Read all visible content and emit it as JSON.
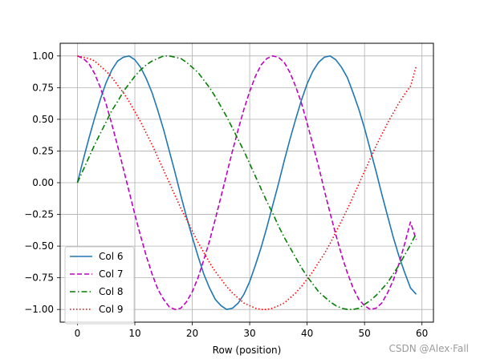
{
  "chart_data": {
    "type": "line",
    "title": "",
    "xlabel": "Row (position)",
    "ylabel": "",
    "xlim": [
      -3,
      62
    ],
    "ylim": [
      -1.1,
      1.1
    ],
    "x_ticks": [
      0,
      10,
      20,
      30,
      40,
      50,
      60
    ],
    "x_tick_labels": [
      "0",
      "10",
      "20",
      "30",
      "40",
      "50",
      "60"
    ],
    "y_ticks": [
      -1.0,
      -0.75,
      -0.5,
      -0.25,
      0.0,
      0.25,
      0.5,
      0.75,
      1.0
    ],
    "y_tick_labels": [
      "−1.00",
      "−0.75",
      "−0.50",
      "−0.25",
      "0.00",
      "0.25",
      "0.50",
      "0.75",
      "1.00"
    ],
    "grid": true,
    "legend_position": "lower-left",
    "x": [
      0,
      1,
      2,
      3,
      4,
      5,
      6,
      7,
      8,
      9,
      10,
      11,
      12,
      13,
      14,
      15,
      16,
      17,
      18,
      19,
      20,
      21,
      22,
      23,
      24,
      25,
      26,
      27,
      28,
      29,
      30,
      31,
      32,
      33,
      34,
      35,
      36,
      37,
      38,
      39,
      40,
      41,
      42,
      43,
      44,
      45,
      46,
      47,
      48,
      49,
      50,
      51,
      52,
      53,
      54,
      55,
      56,
      57,
      58,
      59
    ],
    "series": [
      {
        "name": "Col 6",
        "color": "#1f77b4",
        "style": "solid",
        "values": [
          0.0,
          0.18,
          0.35,
          0.51,
          0.66,
          0.79,
          0.89,
          0.96,
          0.99,
          1.0,
          0.97,
          0.91,
          0.82,
          0.71,
          0.57,
          0.42,
          0.25,
          0.08,
          -0.1,
          -0.27,
          -0.43,
          -0.58,
          -0.72,
          -0.83,
          -0.92,
          -0.97,
          -1.0,
          -0.99,
          -0.95,
          -0.88,
          -0.78,
          -0.65,
          -0.51,
          -0.35,
          -0.18,
          -0.01,
          0.17,
          0.34,
          0.5,
          0.65,
          0.78,
          0.88,
          0.95,
          0.99,
          1.0,
          0.97,
          0.91,
          0.83,
          0.71,
          0.58,
          0.43,
          0.26,
          0.09,
          -0.09,
          -0.26,
          -0.43,
          -0.58,
          -0.71,
          -0.83,
          -0.88
        ]
      },
      {
        "name": "Col 7",
        "color": "#c000c0",
        "style": "dashed",
        "values": [
          1.0,
          0.98,
          0.94,
          0.86,
          0.75,
          0.62,
          0.46,
          0.29,
          0.11,
          -0.07,
          -0.25,
          -0.42,
          -0.58,
          -0.72,
          -0.84,
          -0.92,
          -0.98,
          -1.0,
          -0.99,
          -0.94,
          -0.86,
          -0.75,
          -0.61,
          -0.46,
          -0.29,
          -0.11,
          0.07,
          0.25,
          0.42,
          0.58,
          0.72,
          0.84,
          0.93,
          0.98,
          1.0,
          0.99,
          0.95,
          0.87,
          0.76,
          0.63,
          0.47,
          0.3,
          0.13,
          -0.06,
          -0.24,
          -0.41,
          -0.57,
          -0.71,
          -0.83,
          -0.92,
          -0.97,
          -1.0,
          -0.99,
          -0.95,
          -0.87,
          -0.77,
          -0.64,
          -0.48,
          -0.31,
          -0.45
        ]
      },
      {
        "name": "Col 8",
        "color": "#008000",
        "style": "dashdot",
        "values": [
          0.0,
          0.1,
          0.2,
          0.3,
          0.39,
          0.48,
          0.57,
          0.64,
          0.72,
          0.78,
          0.84,
          0.89,
          0.93,
          0.96,
          0.98,
          1.0,
          1.0,
          0.99,
          0.98,
          0.95,
          0.91,
          0.87,
          0.81,
          0.75,
          0.68,
          0.6,
          0.52,
          0.43,
          0.34,
          0.25,
          0.15,
          0.05,
          -0.05,
          -0.15,
          -0.24,
          -0.34,
          -0.43,
          -0.51,
          -0.59,
          -0.67,
          -0.74,
          -0.8,
          -0.86,
          -0.9,
          -0.94,
          -0.97,
          -0.99,
          -1.0,
          -1.0,
          -0.99,
          -0.96,
          -0.93,
          -0.89,
          -0.84,
          -0.79,
          -0.72,
          -0.65,
          -0.57,
          -0.49,
          -0.4
        ]
      },
      {
        "name": "Col 9",
        "color": "#ff0000",
        "style": "dotted",
        "values": [
          1.0,
          0.99,
          0.98,
          0.96,
          0.92,
          0.88,
          0.83,
          0.77,
          0.71,
          0.64,
          0.56,
          0.48,
          0.39,
          0.3,
          0.2,
          0.1,
          0.0,
          -0.1,
          -0.2,
          -0.29,
          -0.38,
          -0.47,
          -0.55,
          -0.63,
          -0.7,
          -0.76,
          -0.82,
          -0.87,
          -0.91,
          -0.95,
          -0.97,
          -0.99,
          -1.0,
          -1.0,
          -0.99,
          -0.97,
          -0.95,
          -0.91,
          -0.87,
          -0.82,
          -0.76,
          -0.7,
          -0.63,
          -0.56,
          -0.48,
          -0.39,
          -0.3,
          -0.21,
          -0.11,
          -0.01,
          0.09,
          0.19,
          0.29,
          0.38,
          0.47,
          0.55,
          0.63,
          0.7,
          0.76,
          0.92
        ]
      }
    ]
  },
  "watermark": "CSDN @Alex·Fall"
}
